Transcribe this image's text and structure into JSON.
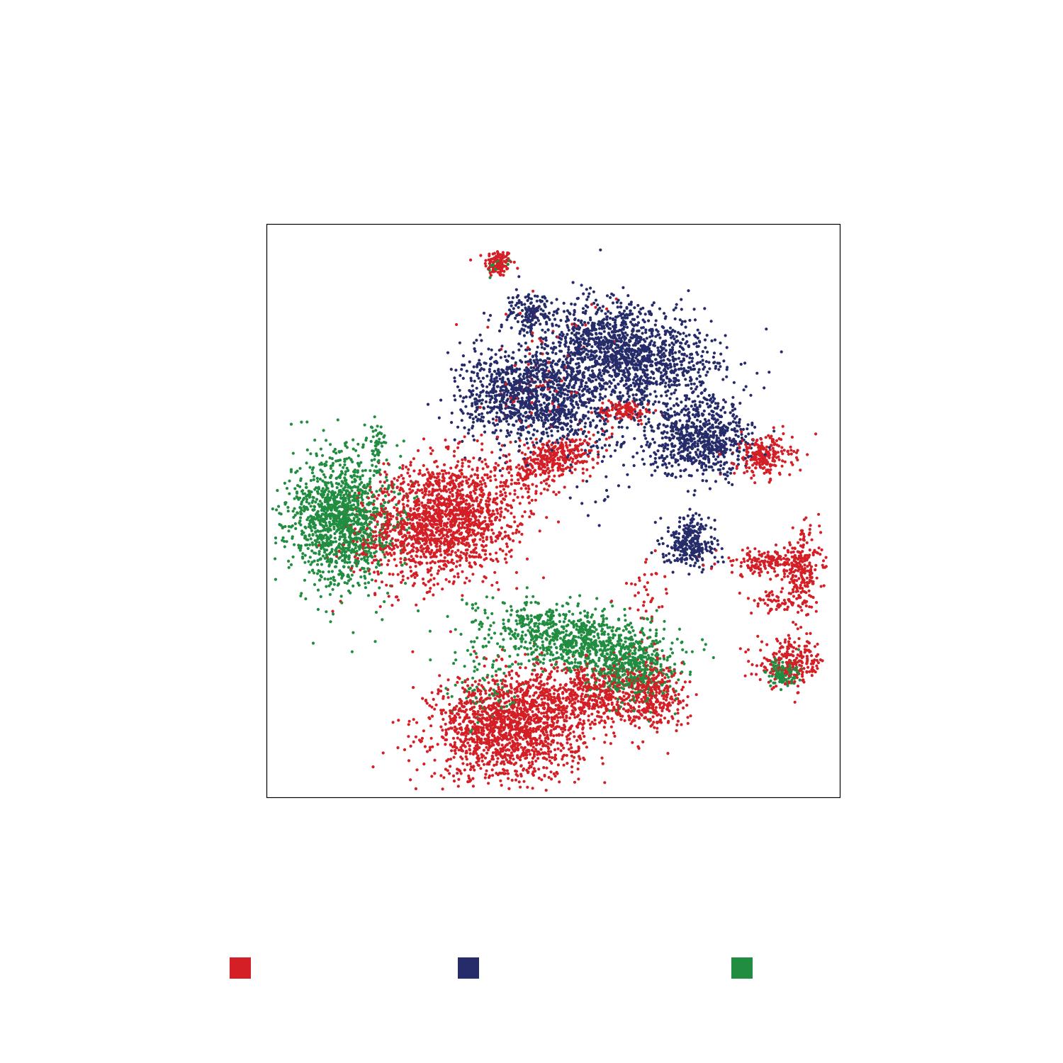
{
  "chart_data": {
    "type": "scatter",
    "title": "",
    "xlabel": "",
    "ylabel": "",
    "xlim": [
      0,
      100
    ],
    "ylim": [
      0,
      100
    ],
    "grid": false,
    "axis_ticks": false,
    "legend_placement": "bottom",
    "legend": [
      {
        "key": "red",
        "color": "#d41f26"
      },
      {
        "key": "navy",
        "color": "#262c6a"
      },
      {
        "key": "green",
        "color": "#218d41"
      }
    ],
    "series": [
      {
        "key": "red",
        "color": "#d41f26",
        "clusters": [
          {
            "cx": 40.4,
            "cy": 93.2,
            "sx": 1.2,
            "sy": 1.2,
            "n": 120
          },
          {
            "cx": 30.5,
            "cy": 48.5,
            "sx": 7.0,
            "sy": 5.0,
            "n": 1700,
            "rot": 15
          },
          {
            "cx": 50.0,
            "cy": 59.0,
            "sx": 4.0,
            "sy": 1.8,
            "n": 350,
            "rot": 18
          },
          {
            "cx": 62.5,
            "cy": 67.5,
            "sx": 2.5,
            "sy": 0.9,
            "n": 120
          },
          {
            "cx": 86.7,
            "cy": 59.5,
            "sx": 2.5,
            "sy": 1.8,
            "n": 220
          },
          {
            "cx": 87.5,
            "cy": 41.0,
            "sx": 4.5,
            "sy": 1.2,
            "n": 180
          },
          {
            "cx": 93.5,
            "cy": 39.5,
            "sx": 1.5,
            "sy": 3.5,
            "n": 200
          },
          {
            "cx": 88.5,
            "cy": 34.0,
            "sx": 2.0,
            "sy": 1.0,
            "n": 60
          },
          {
            "cx": 91.5,
            "cy": 23.5,
            "sx": 3.0,
            "sy": 2.0,
            "n": 220
          },
          {
            "cx": 42.0,
            "cy": 12.0,
            "sx": 6.5,
            "sy": 4.5,
            "n": 1500
          },
          {
            "cx": 56.0,
            "cy": 18.0,
            "sx": 6.0,
            "sy": 3.0,
            "n": 600
          },
          {
            "cx": 67.0,
            "cy": 18.0,
            "sx": 3.0,
            "sy": 3.0,
            "n": 300
          },
          {
            "cx": 48.0,
            "cy": 73.0,
            "sx": 6.0,
            "sy": 8.0,
            "n": 80
          },
          {
            "cx": 66.0,
            "cy": 35.0,
            "sx": 2.0,
            "sy": 4.0,
            "n": 40
          }
        ]
      },
      {
        "key": "navy",
        "color": "#262c6a",
        "clusters": [
          {
            "cx": 46.0,
            "cy": 84.5,
            "sx": 1.8,
            "sy": 1.6,
            "n": 120
          },
          {
            "cx": 46.0,
            "cy": 70.0,
            "sx": 6.0,
            "sy": 4.2,
            "n": 1100
          },
          {
            "cx": 63.0,
            "cy": 77.5,
            "sx": 8.0,
            "sy": 4.2,
            "n": 1400,
            "rot": -15
          },
          {
            "cx": 76.0,
            "cy": 62.5,
            "sx": 4.5,
            "sy": 3.2,
            "n": 700
          },
          {
            "cx": 58.0,
            "cy": 66.0,
            "sx": 5.0,
            "sy": 6.0,
            "n": 200
          },
          {
            "cx": 74.0,
            "cy": 44.0,
            "sx": 2.2,
            "sy": 2.0,
            "n": 250
          },
          {
            "cx": 74.0,
            "cy": 48.0,
            "sx": 1.2,
            "sy": 1.0,
            "n": 30
          }
        ]
      },
      {
        "key": "green",
        "color": "#218d41",
        "clusters": [
          {
            "cx": 13.0,
            "cy": 48.5,
            "sx": 4.5,
            "sy": 5.8,
            "n": 1300
          },
          {
            "cx": 19.5,
            "cy": 62.0,
            "sx": 0.9,
            "sy": 1.6,
            "n": 40
          },
          {
            "cx": 54.0,
            "cy": 27.5,
            "sx": 8.0,
            "sy": 2.8,
            "n": 900,
            "rot": -10
          },
          {
            "cx": 64.0,
            "cy": 22.0,
            "sx": 3.5,
            "sy": 2.8,
            "n": 350
          },
          {
            "cx": 89.8,
            "cy": 21.5,
            "sx": 1.4,
            "sy": 1.4,
            "n": 120
          },
          {
            "cx": 40.4,
            "cy": 93.0,
            "sx": 0.8,
            "sy": 0.8,
            "n": 15
          },
          {
            "cx": 37.5,
            "cy": 19.0,
            "sx": 3.5,
            "sy": 3.5,
            "n": 80
          }
        ]
      }
    ]
  }
}
